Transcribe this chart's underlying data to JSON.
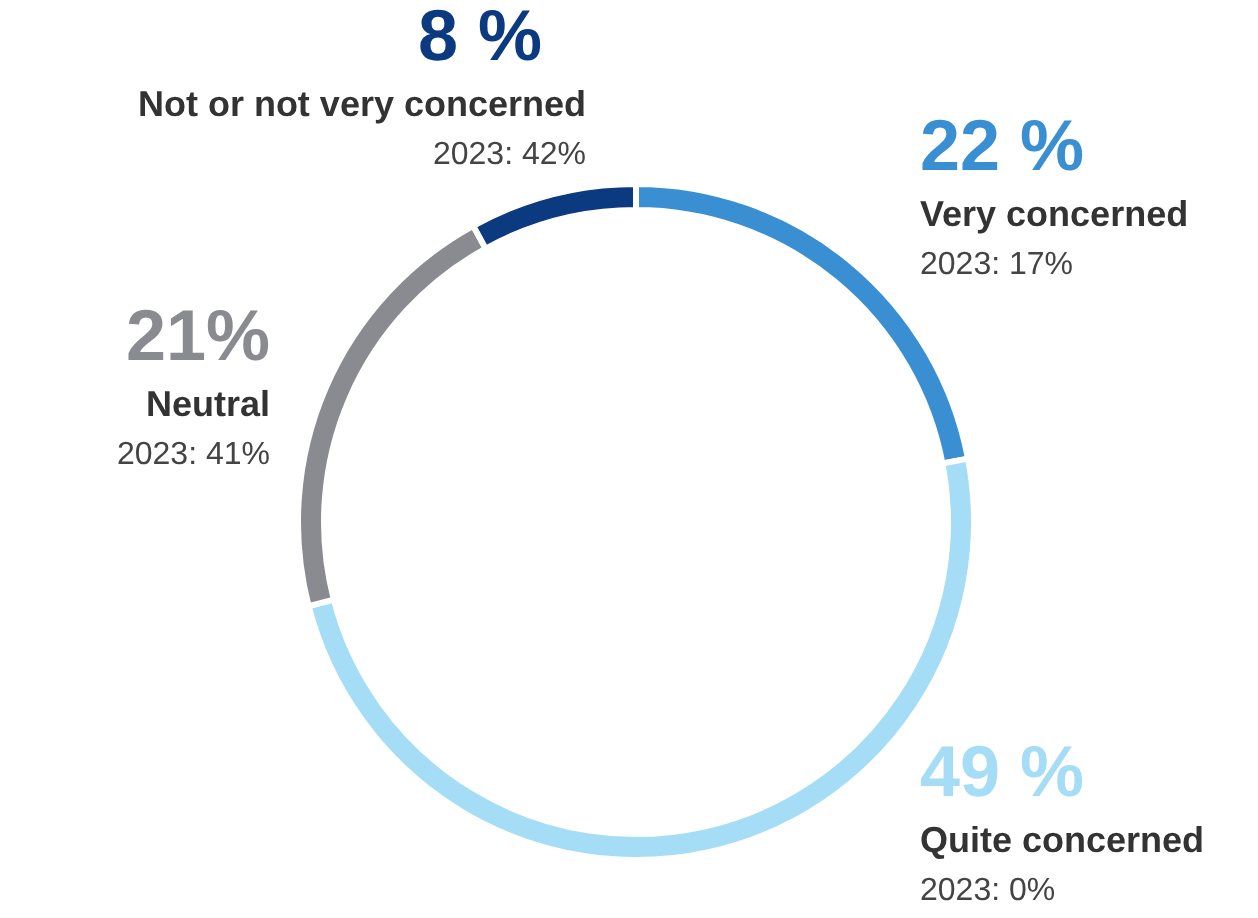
{
  "chart_data": {
    "type": "donut",
    "categories": [
      "Very concerned",
      "Quite concerned",
      "Neutral",
      "Not or not very concerned"
    ],
    "values": [
      22,
      49,
      21,
      8
    ],
    "colors": [
      "#3a8fd3",
      "#a6ddf6",
      "#8a8b90",
      "#0b3a80"
    ],
    "value_labels": [
      "22 %",
      "49 %",
      "21%",
      "8 %"
    ],
    "annotations": [
      "2023: 17%",
      "2023: 0%",
      "2023: 41%",
      "2023: 42%"
    ]
  }
}
